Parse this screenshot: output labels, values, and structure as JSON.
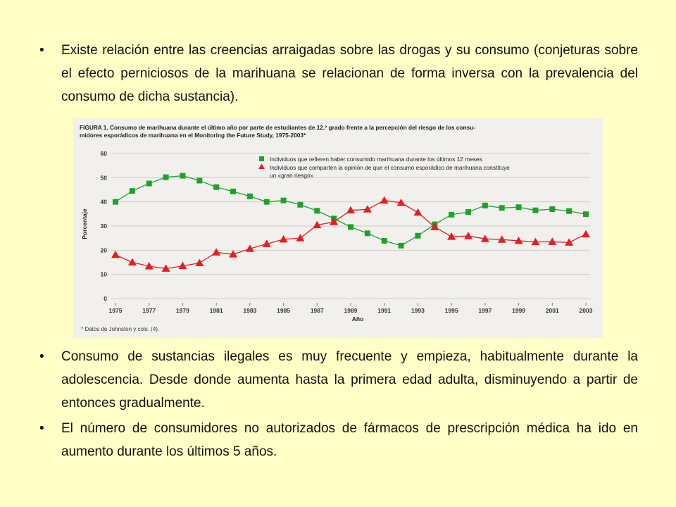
{
  "bullets": [
    {
      "symbol": "•",
      "text": "Existe relación entre las creencias arraigadas sobre las drogas y su consumo (conjeturas sobre el efecto perniciosos de la marihuana se relacionan de forma inversa con la prevalencia del consumo de dicha sustancia)."
    },
    {
      "symbol": "•",
      "text": "Consumo de sustancias ilegales es muy frecuente y empieza, habitualmente durante la adolescencia. Desde donde aumenta hasta la primera edad adulta, disminuyendo a partir de entonces gradualmente."
    },
    {
      "symbol": "•",
      "text": "El número de consumidores no autorizados de fármacos de prescripción médica ha ido en aumento durante los últimos 5 años."
    }
  ],
  "chart_data": {
    "type": "line",
    "title_line1": "FIGURA 1. Consumo de marihuana durante el último año por parte de estudiantes de 12.º grado frente a la percepción del riesgo de los consu-",
    "title_line2": "midores esporádicos de marihuana en el Monitoring the Future Study, 1975-2003*",
    "xlabel": "Año",
    "ylabel": "Porcentaje",
    "ylim": [
      0,
      60
    ],
    "yticks": [
      0,
      10,
      20,
      30,
      40,
      50,
      60
    ],
    "xlim": [
      1975,
      2003
    ],
    "xtick_labels": [
      "1975",
      "1977",
      "1979",
      "1981",
      "1983",
      "1985",
      "1987",
      "1989",
      "1991",
      "1993",
      "1995",
      "1997",
      "1999",
      "2001",
      "2003"
    ],
    "x": [
      1975,
      1976,
      1977,
      1978,
      1979,
      1980,
      1981,
      1982,
      1983,
      1984,
      1985,
      1986,
      1987,
      1988,
      1989,
      1990,
      1991,
      1992,
      1993,
      1994,
      1995,
      1996,
      1997,
      1998,
      1999,
      2000,
      2001,
      2002,
      2003
    ],
    "series": [
      {
        "name": "Individuos que refieren haber consumido marihuana durante los últimos 12 meses",
        "marker": "square",
        "color": "#1fa12c",
        "values": [
          40.0,
          44.5,
          47.6,
          50.2,
          50.8,
          48.8,
          46.1,
          44.3,
          42.3,
          40.0,
          40.6,
          38.8,
          36.3,
          33.1,
          29.6,
          27.0,
          23.9,
          21.9,
          26.0,
          30.7,
          34.7,
          35.8,
          38.5,
          37.5,
          37.8,
          36.5,
          37.0,
          36.2,
          34.9
        ]
      },
      {
        "name": "Individuos que comparten la opinión de que el consumo esporádico de marihuana constituye un «gran riesgo»",
        "marker": "triangle",
        "color": "#e31e24",
        "values": [
          18.1,
          15.0,
          13.4,
          12.4,
          13.5,
          14.7,
          19.1,
          18.3,
          20.6,
          22.6,
          24.5,
          25.0,
          30.4,
          31.7,
          36.5,
          36.9,
          40.6,
          39.6,
          35.6,
          29.6,
          25.6,
          25.9,
          24.7,
          24.4,
          23.9,
          23.4,
          23.5,
          23.2,
          26.6
        ]
      }
    ],
    "legend_position": "top-right",
    "footnote": "* Datos de Johnston y cols. (4)."
  }
}
